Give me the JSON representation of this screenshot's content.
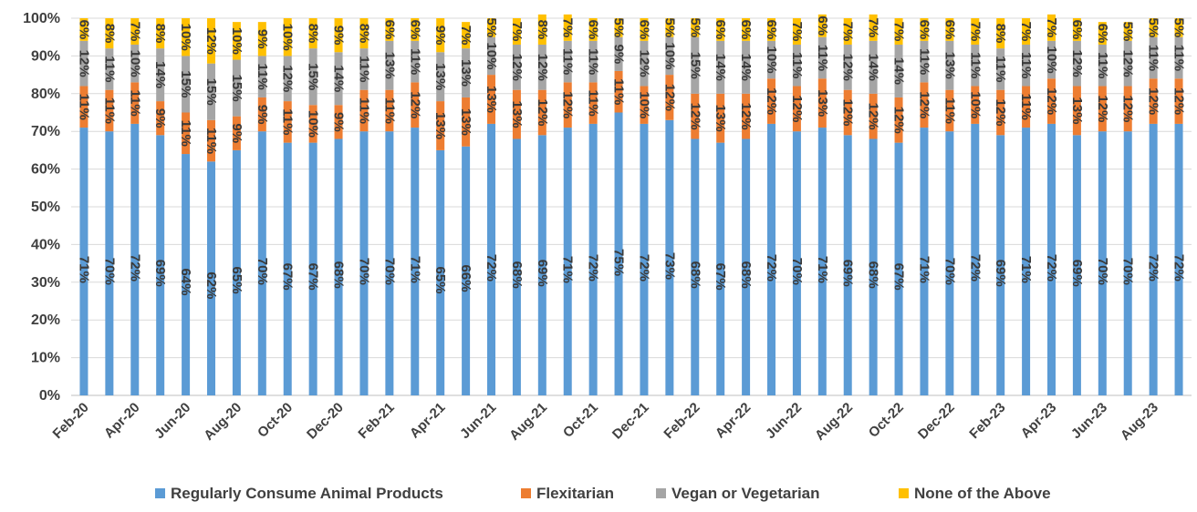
{
  "chart_data": {
    "type": "bar",
    "stacked": true,
    "stack_mode": "percent",
    "title": "",
    "xlabel": "",
    "ylabel": "",
    "ylim": [
      0,
      100
    ],
    "yticks": [
      "0%",
      "10%",
      "20%",
      "30%",
      "40%",
      "50%",
      "60%",
      "70%",
      "80%",
      "90%",
      "100%"
    ],
    "grid": true,
    "legend_position": "bottom",
    "categories": [
      "Feb-20",
      "Mar-20",
      "Apr-20",
      "May-20",
      "Jun-20",
      "Jul-20",
      "Aug-20",
      "Sep-20",
      "Oct-20",
      "Nov-20",
      "Dec-20",
      "Jan-21",
      "Feb-21",
      "Mar-21",
      "Apr-21",
      "May-21",
      "Jun-21",
      "Jul-21",
      "Aug-21",
      "Sep-21",
      "Oct-21",
      "Nov-21",
      "Dec-21",
      "Jan-22",
      "Feb-22",
      "Mar-22",
      "Apr-22",
      "May-22",
      "Jun-22",
      "Jul-22",
      "Aug-22",
      "Sep-22",
      "Oct-22",
      "Nov-22",
      "Dec-22",
      "Jan-23",
      "Feb-23",
      "Mar-23",
      "Apr-23",
      "May-23",
      "Jun-23",
      "Jul-23",
      "Aug-23",
      "Sep-23"
    ],
    "shown_tick_labels": [
      "Feb-20",
      "Apr-20",
      "Jun-20",
      "Aug-20",
      "Oct-20",
      "Dec-20",
      "Feb-21",
      "Apr-21",
      "Jun-21",
      "Aug-21",
      "Oct-21",
      "Dec-21",
      "Feb-22",
      "Apr-22",
      "Jun-22",
      "Aug-22",
      "Oct-22",
      "Dec-22",
      "Feb-23",
      "Apr-23",
      "Jun-23",
      "Aug-23"
    ],
    "series": [
      {
        "name": "Regularly Consume Animal Products",
        "color": "#5b9bd5",
        "values": [
          71,
          70,
          72,
          69,
          64,
          62,
          65,
          70,
          67,
          67,
          68,
          70,
          70,
          71,
          65,
          66,
          72,
          68,
          69,
          71,
          72,
          75,
          72,
          73,
          68,
          67,
          68,
          72,
          70,
          71,
          69,
          68,
          67,
          71,
          70,
          72,
          69,
          71,
          72,
          69,
          70,
          70,
          72,
          72
        ]
      },
      {
        "name": "Flexitarian",
        "color": "#ed7d31",
        "values": [
          11,
          11,
          11,
          9,
          11,
          11,
          9,
          9,
          11,
          10,
          9,
          11,
          11,
          12,
          13,
          13,
          13,
          13,
          12,
          12,
          11,
          11,
          10,
          12,
          12,
          13,
          12,
          12,
          12,
          13,
          12,
          12,
          12,
          12,
          11,
          10,
          12,
          11,
          12,
          13,
          12,
          12,
          12,
          12
        ]
      },
      {
        "name": "Vegan or Vegetarian",
        "color": "#a5a5a5",
        "values": [
          12,
          11,
          10,
          14,
          15,
          15,
          15,
          11,
          12,
          15,
          14,
          11,
          13,
          11,
          13,
          13,
          10,
          12,
          12,
          11,
          11,
          9,
          12,
          10,
          15,
          14,
          14,
          10,
          11,
          11,
          12,
          14,
          14,
          11,
          13,
          11,
          11,
          11,
          10,
          12,
          11,
          12,
          11,
          11
        ]
      },
      {
        "name": "None of the Above",
        "color": "#ffc000",
        "values": [
          6,
          8,
          7,
          8,
          10,
          12,
          10,
          9,
          10,
          8,
          9,
          8,
          6,
          6,
          9,
          7,
          5,
          7,
          8,
          7,
          6,
          5,
          6,
          5,
          5,
          6,
          6,
          6,
          7,
          6,
          7,
          7,
          7,
          6,
          6,
          7,
          8,
          7,
          7,
          6,
          6,
          5,
          5,
          5
        ]
      }
    ]
  }
}
